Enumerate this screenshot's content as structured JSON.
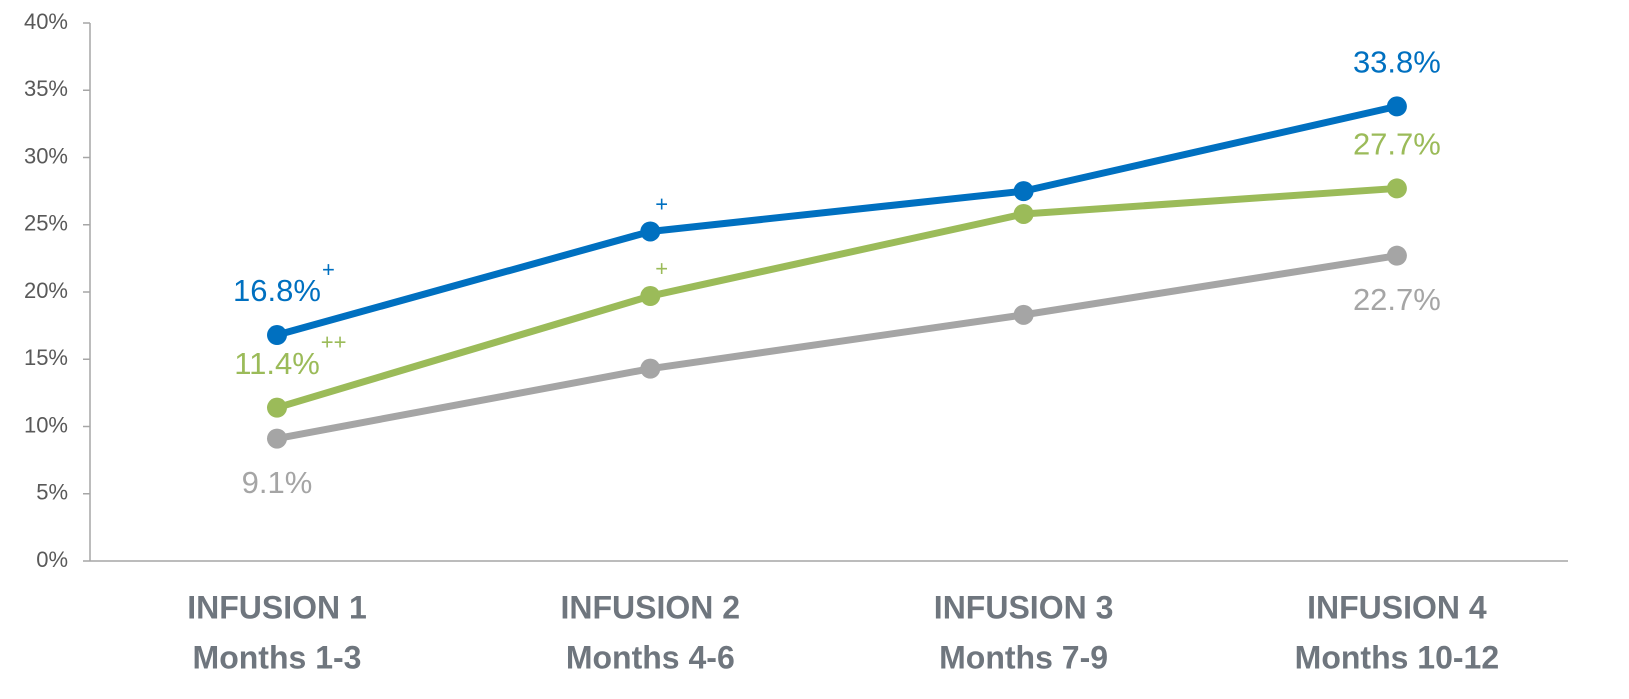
{
  "chart_data": {
    "type": "line",
    "categories": [
      [
        "INFUSION 1",
        "Months 1-3"
      ],
      [
        "INFUSION 2",
        "Months 4-6"
      ],
      [
        "INFUSION 3",
        "Months 7-9"
      ],
      [
        "INFUSION 4",
        "Months 10-12"
      ]
    ],
    "series": [
      {
        "color": "#0070c0",
        "values": [
          16.8,
          24.5,
          27.5,
          33.8
        ],
        "value_labels": [
          "16.8%",
          null,
          null,
          "33.8%"
        ],
        "value_markers": [
          "+",
          "+",
          null,
          null
        ]
      },
      {
        "color": "#9bbb59",
        "values": [
          11.4,
          19.7,
          25.8,
          27.7
        ],
        "value_labels": [
          "11.4%",
          null,
          null,
          "27.7%"
        ],
        "value_markers": [
          "++",
          "+",
          null,
          null
        ]
      },
      {
        "color": "#a5a5a5",
        "values": [
          9.1,
          14.3,
          18.3,
          22.7
        ],
        "value_labels": [
          "9.1%",
          null,
          null,
          "22.7%"
        ],
        "value_markers": [
          null,
          null,
          null,
          null
        ]
      }
    ],
    "ylim": [
      0,
      40
    ],
    "yticks": [
      {
        "value": 0,
        "label": "0%"
      },
      {
        "value": 5,
        "label": "5%"
      },
      {
        "value": 10,
        "label": "10%"
      },
      {
        "value": 15,
        "label": "15%"
      },
      {
        "value": 20,
        "label": "20%"
      },
      {
        "value": 25,
        "label": "25%"
      },
      {
        "value": 30,
        "label": "30%"
      },
      {
        "value": 35,
        "label": "35%"
      },
      {
        "value": 40,
        "label": "40%"
      }
    ]
  }
}
